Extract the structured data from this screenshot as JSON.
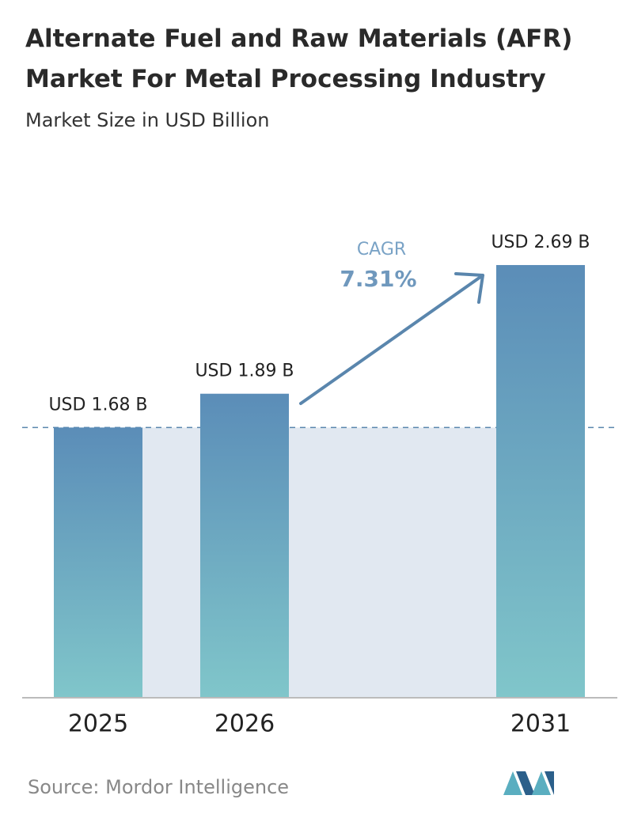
{
  "chart_data": {
    "type": "bar",
    "title": "Alternate Fuel and Raw Materials (AFR) Market For Metal Processing Industry",
    "subtitle": "Market Size in USD Billion",
    "categories": [
      "2025",
      "2026",
      "2031"
    ],
    "values": [
      1.68,
      1.89,
      2.69
    ],
    "value_labels": [
      "USD 1.68 B",
      "USD 1.89 B",
      "USD 2.69 B"
    ],
    "ylim": [
      0,
      3
    ],
    "annotation": {
      "label": "CAGR",
      "value": "7.31%"
    },
    "source": "Source: Mordor Intelligence"
  }
}
